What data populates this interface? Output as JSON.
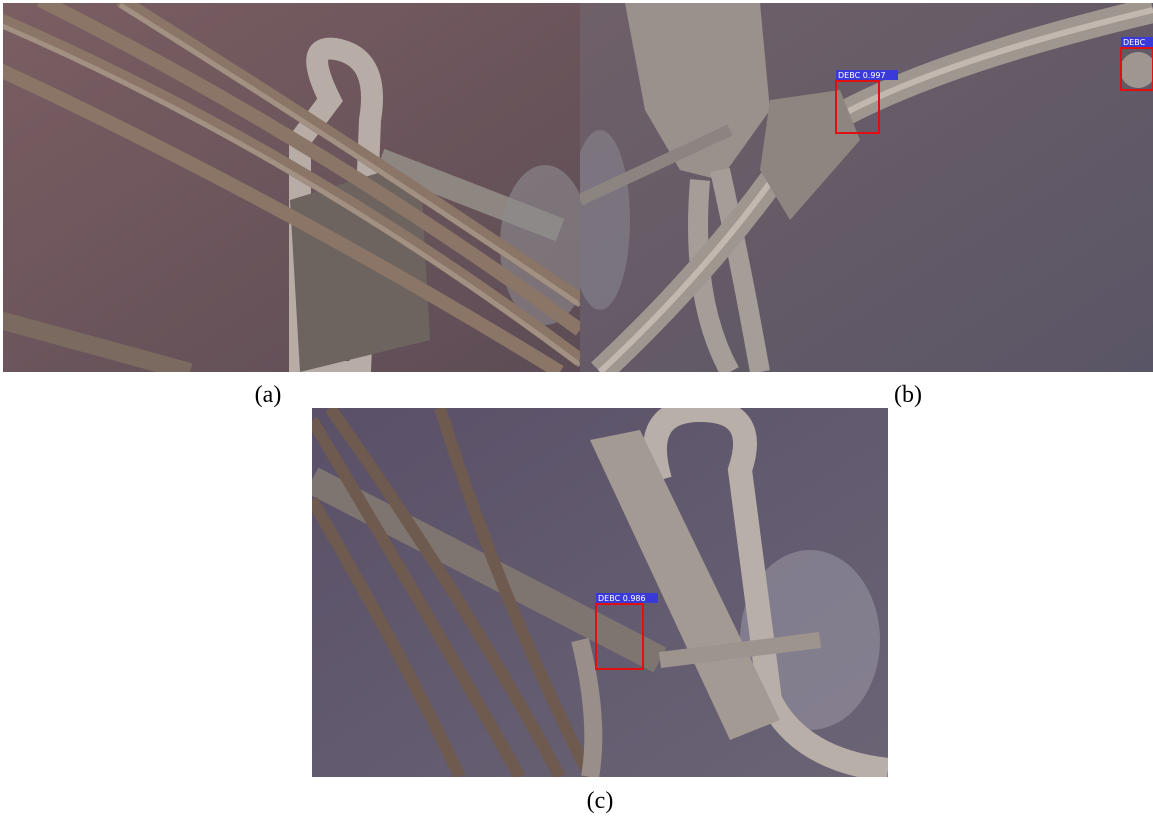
{
  "panels": [
    {
      "caption": "(a)"
    },
    {
      "caption": "(b)",
      "detections": [
        {
          "label": "DEBC 0.997"
        },
        {
          "label": "DEBC"
        }
      ]
    },
    {
      "caption": "(c)",
      "detections": [
        {
          "label": "DEBC 0.986"
        }
      ]
    }
  ]
}
